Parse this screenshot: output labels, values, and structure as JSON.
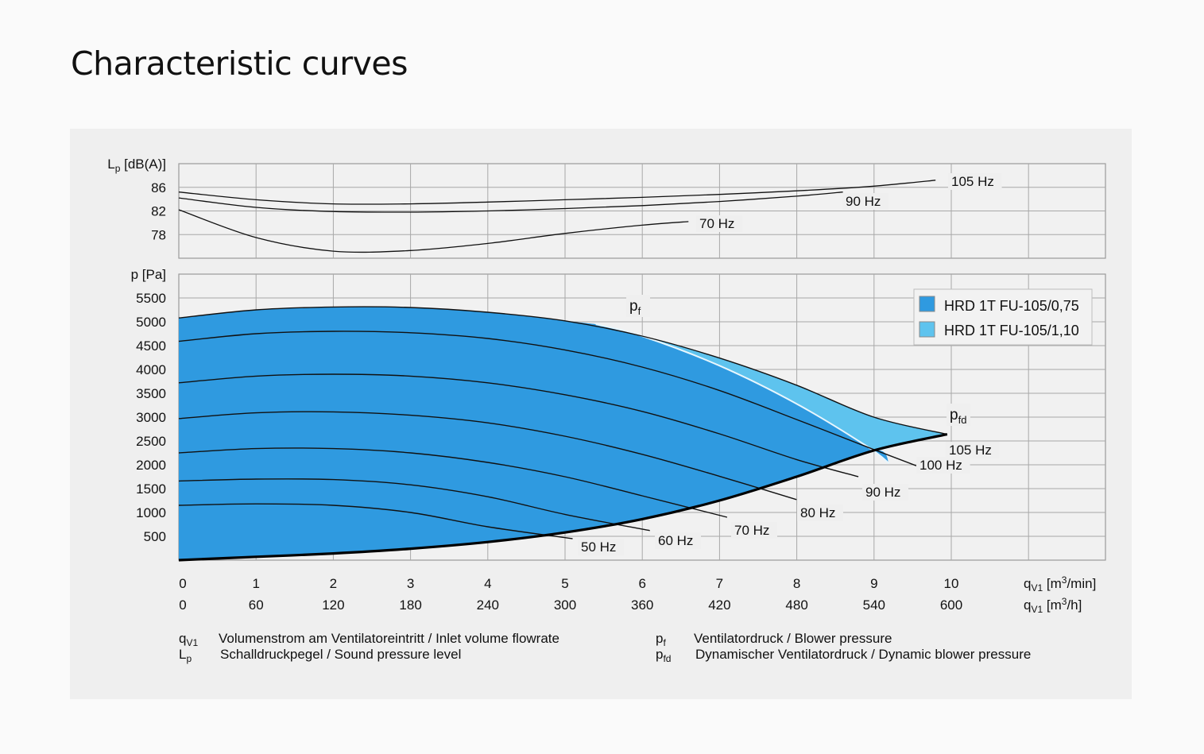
{
  "page": {
    "title": "Characteristic curves"
  },
  "chart_data": {
    "type": "line",
    "x_axis": {
      "range": [
        0,
        12
      ],
      "ticks_min": [
        "0",
        "1",
        "2",
        "3",
        "4",
        "5",
        "6",
        "7",
        "8",
        "9",
        "10"
      ],
      "ticks_h": [
        "0",
        "60",
        "120",
        "180",
        "240",
        "300",
        "360",
        "420",
        "480",
        "540",
        "600"
      ],
      "label_min": {
        "main": "q",
        "sub": "V1",
        "unit_pre": " [m",
        "sup": "3",
        "unit_post": "/min]"
      },
      "label_h": {
        "main": "q",
        "sub": "V1",
        "unit_pre": " [m",
        "sup": "3",
        "unit_post": "/h]"
      }
    },
    "sound_panel": {
      "ylabel": {
        "main": "L",
        "sub": "p",
        "unit": " [dB(A)]"
      },
      "yticks": [
        "86",
        "82",
        "78"
      ],
      "ylim": [
        74,
        90
      ],
      "series": [
        {
          "name": "105 Hz",
          "x": [
            0,
            1,
            2,
            3,
            4,
            5,
            6,
            7,
            8,
            9,
            9.8
          ],
          "y": [
            85.2,
            83.9,
            83.2,
            83.2,
            83.5,
            83.9,
            84.3,
            84.8,
            85.4,
            86.2,
            87.2
          ]
        },
        {
          "name": "90 Hz",
          "x": [
            0,
            1,
            2,
            3,
            4,
            5,
            6,
            7,
            8,
            8.6
          ],
          "y": [
            84.2,
            82.6,
            81.9,
            81.8,
            82.0,
            82.4,
            82.9,
            83.6,
            84.5,
            85.2
          ]
        },
        {
          "name": "70 Hz",
          "x": [
            0,
            1,
            2,
            3,
            4,
            5,
            6,
            6.6
          ],
          "y": [
            82.2,
            77.5,
            75.2,
            75.3,
            76.5,
            78.2,
            79.6,
            80.2
          ]
        }
      ],
      "labels": [
        "105 Hz",
        "90 Hz",
        "70 Hz"
      ]
    },
    "pressure_panel": {
      "ylabel": "p [Pa]",
      "yticks": [
        "5500",
        "5000",
        "4500",
        "4000",
        "3500",
        "3000",
        "2500",
        "2000",
        "1500",
        "1000",
        "500"
      ],
      "ylim": [
        0,
        6000
      ],
      "series": [
        {
          "name": "50 Hz",
          "x": [
            0,
            1,
            2,
            3,
            4,
            5.1
          ],
          "y": [
            1150,
            1180,
            1150,
            1000,
            700,
            450
          ]
        },
        {
          "name": "60 Hz",
          "x": [
            0,
            1,
            2,
            3,
            4,
            5,
            6.1
          ],
          "y": [
            1660,
            1700,
            1690,
            1580,
            1330,
            960,
            620
          ]
        },
        {
          "name": "70 Hz",
          "x": [
            0,
            1,
            2,
            3,
            4,
            5,
            6,
            7.1
          ],
          "y": [
            2250,
            2340,
            2340,
            2250,
            2050,
            1750,
            1350,
            900
          ]
        },
        {
          "name": "80 Hz",
          "x": [
            0,
            1,
            2,
            3,
            4,
            5,
            6,
            7,
            8.0
          ],
          "y": [
            2970,
            3090,
            3110,
            3040,
            2880,
            2600,
            2220,
            1760,
            1270
          ]
        },
        {
          "name": "90 Hz",
          "x": [
            0,
            1,
            2,
            3,
            4,
            5,
            6,
            7,
            8,
            8.8
          ],
          "y": [
            3720,
            3860,
            3900,
            3860,
            3720,
            3470,
            3120,
            2650,
            2110,
            1750
          ]
        },
        {
          "name": "100 Hz",
          "x": [
            0,
            1,
            2,
            3,
            4,
            5,
            6,
            7,
            8,
            9,
            9.55
          ],
          "y": [
            4590,
            4750,
            4800,
            4770,
            4650,
            4410,
            4050,
            3560,
            2950,
            2320,
            1980
          ]
        },
        {
          "name": "105 Hz",
          "x": [
            0,
            1,
            2,
            3,
            4,
            5,
            6,
            7,
            8,
            9,
            9.95
          ],
          "y": [
            5080,
            5250,
            5310,
            5300,
            5200,
            5020,
            4700,
            4240,
            3670,
            3000,
            2640
          ]
        }
      ],
      "envelope_075": {
        "x": [
          5.4,
          6,
          7,
          8,
          8.9,
          9.2
        ],
        "y": [
          4950,
          4700,
          4080,
          3280,
          2400,
          2030
        ]
      },
      "pfd_curve": {
        "x": [
          0,
          1,
          2,
          3,
          4,
          5,
          6,
          7,
          8,
          9,
          9.95
        ],
        "y": [
          0,
          70,
          140,
          240,
          380,
          580,
          860,
          1250,
          1750,
          2300,
          2640
        ]
      },
      "curve_labels": [
        "50 Hz",
        "60 Hz",
        "70 Hz",
        "80 Hz",
        "90 Hz",
        "100 Hz",
        "105 Hz"
      ],
      "annotations": {
        "pf": {
          "main": "p",
          "sub": "f"
        },
        "pfd": {
          "main": "p",
          "sub": "fd"
        }
      },
      "fill_colors": {
        "hrd_075": "#2f9ae0",
        "hrd_110": "#5ec3ee"
      }
    },
    "legend": {
      "position": "top-right",
      "items": [
        {
          "label": "HRD 1T FU-105/0,75",
          "color": "#2f9ae0"
        },
        {
          "label": "HRD 1T FU-105/1,10",
          "color": "#5ec3ee"
        }
      ]
    },
    "footnotes": [
      {
        "symbol": "q",
        "sub": "V1",
        "text": "Volumenstrom am Ventilatoreintritt / Inlet volume flowrate"
      },
      {
        "symbol": "L",
        "sub": "p",
        "text": "Schalldruckpegel / Sound pressure level"
      },
      {
        "symbol": "p",
        "sub": "f",
        "text": "Ventilatordruck / Blower pressure"
      },
      {
        "symbol": "p",
        "sub": "fd",
        "text": "Dynamischer Ventilatordruck / Dynamic blower pressure"
      }
    ]
  }
}
